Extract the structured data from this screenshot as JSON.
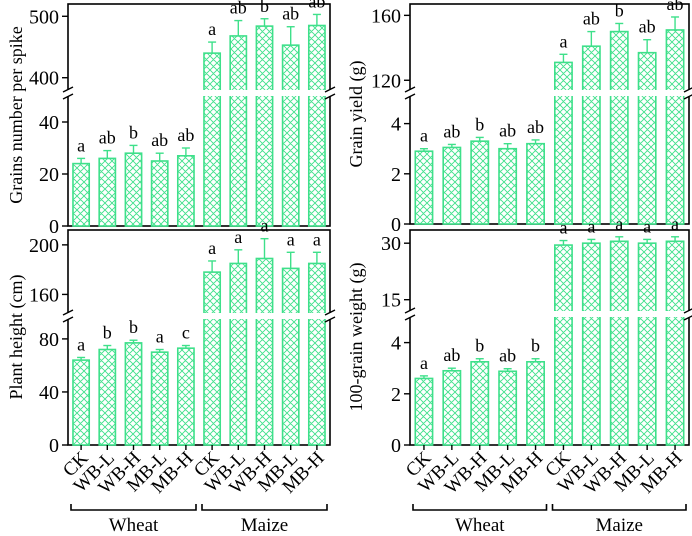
{
  "chart_data": [
    {
      "id": "grains",
      "type": "bar",
      "ylabel": "Grains number per spike",
      "categories": [
        "CK",
        "WB-L",
        "WB-H",
        "MB-L",
        "MB-H",
        "CK",
        "WB-L",
        "WB-H",
        "MB-L",
        "MB-H"
      ],
      "values": [
        24,
        26,
        28,
        25,
        27,
        440,
        468,
        484,
        453,
        485
      ],
      "errors": [
        2,
        3,
        3,
        3,
        3,
        18,
        25,
        12,
        30,
        18
      ],
      "letters": [
        "a",
        "ab",
        "b",
        "ab",
        "ab",
        "a",
        "ab",
        "b",
        "ab",
        "ab"
      ],
      "lower_segment": {
        "ylim": [
          0,
          50
        ],
        "ticks": [
          0,
          20,
          40
        ]
      },
      "upper_segment": {
        "ylim": [
          380,
          520
        ],
        "ticks": [
          400,
          500
        ]
      }
    },
    {
      "id": "yield",
      "type": "bar",
      "ylabel": "Grain yield (g)",
      "categories": [
        "CK",
        "WB-L",
        "WB-H",
        "MB-L",
        "MB-H",
        "CK",
        "WB-L",
        "WB-H",
        "MB-L",
        "MB-H"
      ],
      "values": [
        2.9,
        3.05,
        3.3,
        3.0,
        3.2,
        131,
        141,
        150,
        137,
        151
      ],
      "errors": [
        0.1,
        0.12,
        0.15,
        0.2,
        0.15,
        5,
        9,
        5,
        8,
        8
      ],
      "letters": [
        "a",
        "ab",
        "b",
        "ab",
        "ab",
        "a",
        "ab",
        "b",
        "ab",
        "ab"
      ],
      "lower_segment": {
        "ylim": [
          0,
          5.1
        ],
        "ticks": [
          0,
          2,
          4
        ]
      },
      "upper_segment": {
        "ylim": [
          114,
          167
        ],
        "ticks": [
          120,
          160
        ]
      }
    },
    {
      "id": "height",
      "type": "bar",
      "ylabel": "Plant height (cm)",
      "categories": [
        "CK",
        "WB-L",
        "WB-H",
        "MB-L",
        "MB-H",
        "CK",
        "WB-L",
        "WB-H",
        "MB-L",
        "MB-H"
      ],
      "values": [
        64,
        72,
        77,
        70,
        73,
        178,
        185,
        189,
        181,
        185
      ],
      "errors": [
        2,
        3,
        2,
        2,
        2,
        9,
        11,
        16,
        13,
        9
      ],
      "letters": [
        "a",
        "b",
        "b",
        "a",
        "c",
        "a",
        "a",
        "a",
        "a",
        "a"
      ],
      "lower_segment": {
        "ylim": [
          0,
          95
        ],
        "ticks": [
          0,
          40,
          80
        ]
      },
      "upper_segment": {
        "ylim": [
          145,
          212
        ],
        "ticks": [
          160,
          200
        ]
      }
    },
    {
      "id": "weight",
      "type": "bar",
      "ylabel": "100-grain weight (g)",
      "categories": [
        "CK",
        "WB-L",
        "WB-H",
        "MB-L",
        "MB-H",
        "CK",
        "WB-L",
        "WB-H",
        "MB-L",
        "MB-H"
      ],
      "values": [
        2.6,
        2.9,
        3.25,
        2.88,
        3.25,
        29.5,
        30.0,
        30.5,
        30.0,
        30.5
      ],
      "errors": [
        0.1,
        0.1,
        0.12,
        0.1,
        0.12,
        1.2,
        1.0,
        1.2,
        1.0,
        1.2
      ],
      "letters": [
        "a",
        "ab",
        "b",
        "ab",
        "b",
        "a",
        "a",
        "a",
        "a",
        "a"
      ],
      "lower_segment": {
        "ylim": [
          0,
          5.0
        ],
        "ticks": [
          0,
          2,
          4
        ]
      },
      "upper_segment": {
        "ylim": [
          12,
          33.5
        ],
        "ticks": [
          15,
          30
        ]
      }
    }
  ],
  "groups": [
    "Wheat",
    "Maize"
  ],
  "colors": {
    "bar": "#3ee08a"
  }
}
